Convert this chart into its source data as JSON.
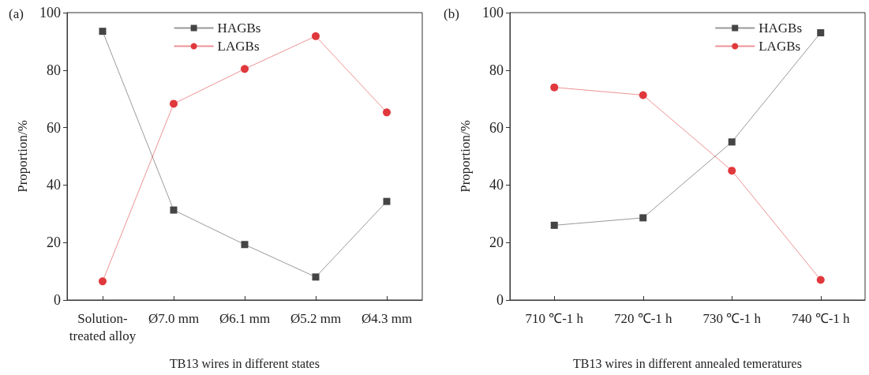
{
  "chart_data": [
    {
      "type": "line",
      "title": "(a)",
      "xlabel": "TB13 wires in different states",
      "ylabel": "Proportion/%",
      "categories": [
        "Solution-\ntreated alloy",
        "Ø7.0 mm",
        "Ø6.1 mm",
        "Ø5.2 mm",
        "Ø4.3 mm"
      ],
      "series": [
        {
          "name": "HAGBs",
          "color": "#454545",
          "marker": "square",
          "values": [
            93.5,
            31.3,
            19.3,
            8.0,
            34.3
          ]
        },
        {
          "name": "LAGBs",
          "color": "#e0383c",
          "marker": "circle",
          "values": [
            6.5,
            68.3,
            80.4,
            91.8,
            65.3
          ]
        }
      ],
      "ylim": [
        0,
        100
      ],
      "yticks": [
        0,
        20,
        40,
        60,
        80,
        100
      ],
      "grid": false,
      "legend": "top"
    },
    {
      "type": "line",
      "title": "(b)",
      "xlabel": "TB13 wires in different annealed temeratures",
      "ylabel": "Proportion/%",
      "categories": [
        "710 ℃-1 h",
        "720 ℃-1 h",
        "730 ℃-1 h",
        "740 ℃-1 h"
      ],
      "series": [
        {
          "name": "HAGBs",
          "color": "#454545",
          "marker": "square",
          "values": [
            26.0,
            28.6,
            55.0,
            93.0
          ]
        },
        {
          "name": "LAGBs",
          "color": "#e0383c",
          "marker": "circle",
          "values": [
            74.0,
            71.3,
            45.0,
            7.0
          ]
        }
      ],
      "ylim": [
        0,
        100
      ],
      "yticks": [
        0,
        20,
        40,
        60,
        80,
        100
      ],
      "grid": false,
      "legend": "top right"
    }
  ]
}
